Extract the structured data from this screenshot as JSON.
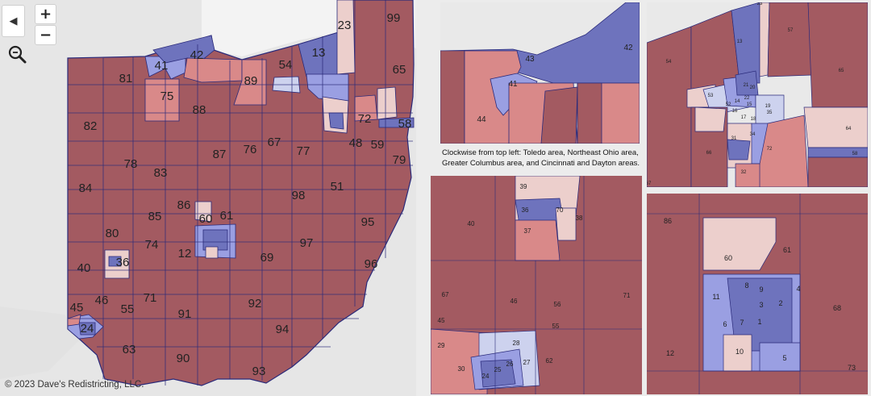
{
  "controls": {
    "collapse_glyph": "◀",
    "zoom_in": "+",
    "zoom_out": "−",
    "zoom_icon": "zoom-magnifier-icon"
  },
  "colors": {
    "solid_red": "#a35a61",
    "light_red": "#d98989",
    "pale_red": "#eccfcc",
    "pale_blue": "#cdd2ee",
    "light_blue": "#9a9fe2",
    "solid_blue": "#6e73bd",
    "border": "#2a2a7a",
    "lake": "#e9e9e9"
  },
  "caption": "Clockwise from top left: Toledo area, Northeast Ohio area, Greater Columbus area, and Cincinnati and Dayton areas.",
  "copyright": "© 2023 Dave's Redistricting, LLC.",
  "main_map": {
    "labels": [
      {
        "t": "99",
        "c": "r"
      },
      {
        "t": "23",
        "c": "p"
      },
      {
        "t": "42",
        "c": "b"
      },
      {
        "t": "41",
        "c": "lb"
      },
      {
        "t": "13",
        "c": "b"
      },
      {
        "t": "65",
        "c": "r"
      },
      {
        "t": "54",
        "c": "r"
      },
      {
        "t": "81",
        "c": "r"
      },
      {
        "t": "89",
        "c": "lr"
      },
      {
        "t": "75",
        "c": "lr"
      },
      {
        "t": "88",
        "c": "r"
      },
      {
        "t": "72",
        "c": "lr"
      },
      {
        "t": "82",
        "c": "r"
      },
      {
        "t": "87",
        "c": "r"
      },
      {
        "t": "76",
        "c": "r"
      },
      {
        "t": "67",
        "c": "r"
      },
      {
        "t": "77",
        "c": "r"
      },
      {
        "t": "48",
        "c": "r"
      },
      {
        "t": "59",
        "c": "r"
      },
      {
        "t": "79",
        "c": "r"
      },
      {
        "t": "78",
        "c": "r"
      },
      {
        "t": "83",
        "c": "r"
      },
      {
        "t": "84",
        "c": "r"
      },
      {
        "t": "98",
        "c": "r"
      },
      {
        "t": "51",
        "c": "r"
      },
      {
        "t": "86",
        "c": "r"
      },
      {
        "t": "85",
        "c": "r"
      },
      {
        "t": "60",
        "c": "p"
      },
      {
        "t": "61",
        "c": "r"
      },
      {
        "t": "95",
        "c": "r"
      },
      {
        "t": "80",
        "c": "r"
      },
      {
        "t": "74",
        "c": "r"
      },
      {
        "t": "97",
        "c": "r"
      },
      {
        "t": "12",
        "c": "r"
      },
      {
        "t": "69",
        "c": "r"
      },
      {
        "t": "40",
        "c": "r"
      },
      {
        "t": "96",
        "c": "r"
      },
      {
        "t": "46",
        "c": "r"
      },
      {
        "t": "71",
        "c": "r"
      },
      {
        "t": "45",
        "c": "r"
      },
      {
        "t": "55",
        "c": "r"
      },
      {
        "t": "92",
        "c": "r"
      },
      {
        "t": "91",
        "c": "r"
      },
      {
        "t": "94",
        "c": "r"
      },
      {
        "t": "63",
        "c": "r"
      },
      {
        "t": "90",
        "c": "r"
      },
      {
        "t": "93",
        "c": "r"
      },
      {
        "t": "36",
        "c": "p"
      },
      {
        "t": "58",
        "c": "b"
      },
      {
        "t": "24",
        "c": "b"
      }
    ]
  },
  "insets": {
    "toledo": {
      "labels": [
        "42",
        "43",
        "41",
        "44"
      ]
    },
    "northeast": {
      "labels": [
        "23",
        "57",
        "13",
        "54",
        "65",
        "53",
        "52",
        "14",
        "15",
        "20",
        "19",
        "16",
        "17",
        "18",
        "21",
        "22",
        "31",
        "34",
        "35",
        "64",
        "66",
        "72",
        "32",
        "58",
        "67"
      ]
    },
    "columbus": {
      "labels": [
        "86",
        "61",
        "60",
        "8",
        "9",
        "4",
        "11",
        "2",
        "3",
        "68",
        "6",
        "7",
        "1",
        "12",
        "10",
        "5",
        "73"
      ]
    },
    "cincinnati": {
      "labels": [
        "39",
        "36",
        "70",
        "38",
        "40",
        "37",
        "67",
        "46",
        "56",
        "71",
        "45",
        "55",
        "28",
        "29",
        "27",
        "26",
        "30",
        "24",
        "25",
        "62"
      ]
    }
  }
}
